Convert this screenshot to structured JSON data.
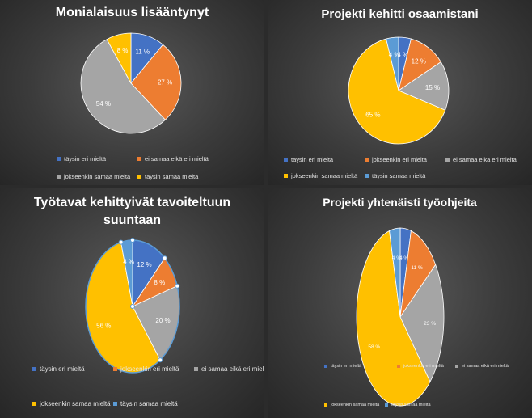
{
  "colors": {
    "blue": "#4472c4",
    "orange": "#ed7d31",
    "gray": "#a5a5a5",
    "yellow": "#ffc000",
    "lightblue": "#5b9bd5",
    "background": "#3b3b3b"
  },
  "chart_data": [
    {
      "type": "pie",
      "title": "Monialaisuus lisääntynyt",
      "categories": [
        "täysin eri mieltä",
        "ei samaa eikä eri mieltä",
        "jokseenkin samaa mieltä",
        "täysin samaa mieltä"
      ],
      "values": [
        11,
        27,
        54,
        8
      ],
      "data_labels": [
        "11 %",
        "27 %",
        "54 %",
        "8 %"
      ],
      "slice_colors": [
        "#4472c4",
        "#ed7d31",
        "#a5a5a5",
        "#ffc000"
      ],
      "legend": "bottom"
    },
    {
      "type": "pie",
      "title": "Projekti kehitti osaamistani",
      "categories": [
        "täysin eri mieltä",
        "jokseenkin eri mieltä",
        "ei samaa eikä eri mieltä",
        "jokseenkin samaa mieltä",
        "täysin samaa mieltä"
      ],
      "values": [
        4,
        12,
        15,
        65,
        4
      ],
      "data_labels": [
        "4 %",
        "12 %",
        "15 %",
        "65 %",
        "4 %"
      ],
      "slice_colors": [
        "#4472c4",
        "#ed7d31",
        "#a5a5a5",
        "#ffc000",
        "#5b9bd5"
      ],
      "legend": "bottom"
    },
    {
      "type": "pie",
      "title": "Työtavat kehittyivät tavoiteltuun suuntaan",
      "categories": [
        "täysin eri mieltä",
        "jokseenkin eri mieltä",
        "ei samaa eikä eri mieltä",
        "jokseenkin samaa mieltä",
        "täysin samaa mieltä"
      ],
      "values": [
        12,
        8,
        20,
        56,
        4
      ],
      "data_labels": [
        "12 %",
        "8 %",
        "20 %",
        "56 %",
        "4 %"
      ],
      "slice_colors": [
        "#4472c4",
        "#ed7d31",
        "#a5a5a5",
        "#ffc000",
        "#5b9bd5"
      ],
      "legend": "bottom",
      "selected": true
    },
    {
      "type": "pie",
      "title": "Projekti yhtenäisti työohjeita",
      "categories": [
        "täysin eri mieltä",
        "jokseenkin eri mieltä",
        "ei samaa eikä eri mieltä",
        "jokseenkin samaa mieltä",
        "täysin samaa mieltä"
      ],
      "values": [
        4,
        11,
        23,
        58,
        4
      ],
      "data_labels": [
        "4 %",
        "11 %",
        "23 %",
        "58 %",
        "4 %"
      ],
      "slice_colors": [
        "#4472c4",
        "#ed7d31",
        "#a5a5a5",
        "#ffc000",
        "#5b9bd5"
      ],
      "legend": "bottom"
    }
  ]
}
